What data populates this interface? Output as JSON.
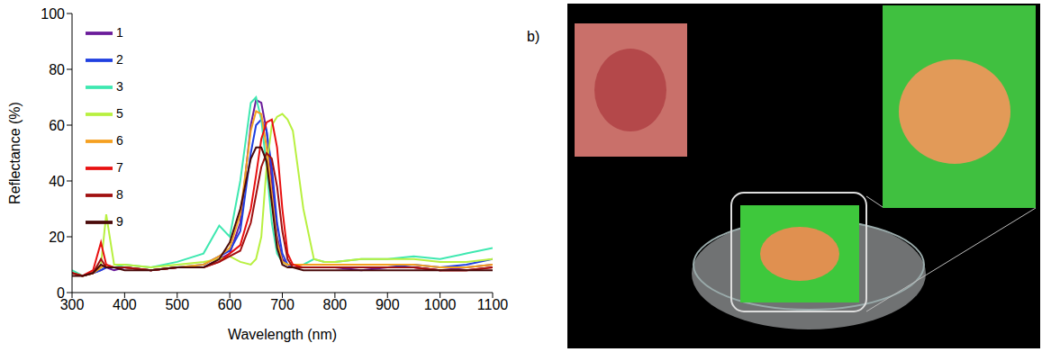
{
  "chart_data": {
    "type": "line",
    "x_label": "Wavelength (nm)",
    "y_label": "Reflectance (%)",
    "x": [
      300,
      320,
      340,
      355,
      365,
      380,
      400,
      450,
      500,
      550,
      580,
      600,
      620,
      640,
      650,
      660,
      670,
      680,
      690,
      700,
      710,
      720,
      740,
      760,
      780,
      800,
      850,
      900,
      950,
      1000,
      1050,
      1100
    ],
    "xlim": [
      300,
      1100
    ],
    "xticks": [
      300,
      400,
      500,
      600,
      700,
      800,
      900,
      1000,
      1100
    ],
    "ylim": [
      0,
      100
    ],
    "yticks": [
      0,
      20,
      40,
      60,
      80,
      100
    ],
    "legend": "upper left",
    "series": [
      {
        "name": "1",
        "color": "#6a1b9a",
        "values": [
          7,
          6,
          7,
          8,
          9,
          8,
          9,
          8,
          9,
          9,
          12,
          14,
          25,
          60,
          69,
          68,
          58,
          40,
          20,
          12,
          10,
          9,
          9,
          9,
          9,
          9,
          8,
          9,
          9,
          8,
          9,
          10
        ]
      },
      {
        "name": "2",
        "color": "#1f3fe0",
        "values": [
          7,
          6,
          7,
          8,
          9,
          9,
          9,
          8,
          9,
          10,
          13,
          15,
          22,
          50,
          60,
          62,
          58,
          45,
          25,
          14,
          10,
          9,
          9,
          9,
          9,
          9,
          9,
          9,
          10,
          9,
          10,
          12
        ]
      },
      {
        "name": "3",
        "color": "#3ee8b0",
        "values": [
          8,
          6,
          7,
          9,
          10,
          9,
          10,
          9,
          11,
          14,
          24,
          20,
          40,
          68,
          70,
          62,
          45,
          25,
          14,
          11,
          10,
          10,
          10,
          12,
          11,
          11,
          12,
          12,
          13,
          12,
          14,
          16
        ]
      },
      {
        "name": "5",
        "color": "#b8f040",
        "values": [
          7,
          6,
          7,
          10,
          28,
          10,
          10,
          9,
          10,
          11,
          12,
          13,
          11,
          10,
          12,
          20,
          45,
          60,
          63,
          64,
          62,
          58,
          30,
          12,
          11,
          11,
          12,
          12,
          12,
          11,
          11,
          12
        ]
      },
      {
        "name": "6",
        "color": "#f5a020",
        "values": [
          7,
          6,
          7,
          9,
          10,
          9,
          9,
          8,
          9,
          10,
          13,
          16,
          28,
          58,
          65,
          64,
          52,
          35,
          18,
          11,
          10,
          10,
          10,
          10,
          10,
          10,
          10,
          10,
          10,
          9,
          9,
          10
        ]
      },
      {
        "name": "7",
        "color": "#e81010",
        "values": [
          7,
          6,
          8,
          18,
          10,
          9,
          9,
          8,
          9,
          9,
          11,
          14,
          17,
          30,
          42,
          55,
          61,
          62,
          52,
          30,
          14,
          10,
          9,
          9,
          9,
          9,
          9,
          9,
          9,
          8,
          8,
          9
        ]
      },
      {
        "name": "8",
        "color": "#a01010",
        "values": [
          7,
          6,
          7,
          12,
          9,
          9,
          9,
          8,
          9,
          9,
          11,
          13,
          15,
          25,
          35,
          45,
          50,
          48,
          38,
          22,
          12,
          9,
          9,
          9,
          9,
          9,
          9,
          9,
          9,
          8,
          8,
          9
        ]
      },
      {
        "name": "9",
        "color": "#4a0a0a",
        "values": [
          6,
          6,
          7,
          10,
          9,
          9,
          8,
          8,
          9,
          9,
          12,
          18,
          30,
          48,
          52,
          52,
          47,
          32,
          16,
          10,
          9,
          9,
          8,
          8,
          8,
          8,
          8,
          8,
          8,
          8,
          8,
          8
        ]
      }
    ]
  },
  "panel_b": {
    "label": "b)"
  }
}
